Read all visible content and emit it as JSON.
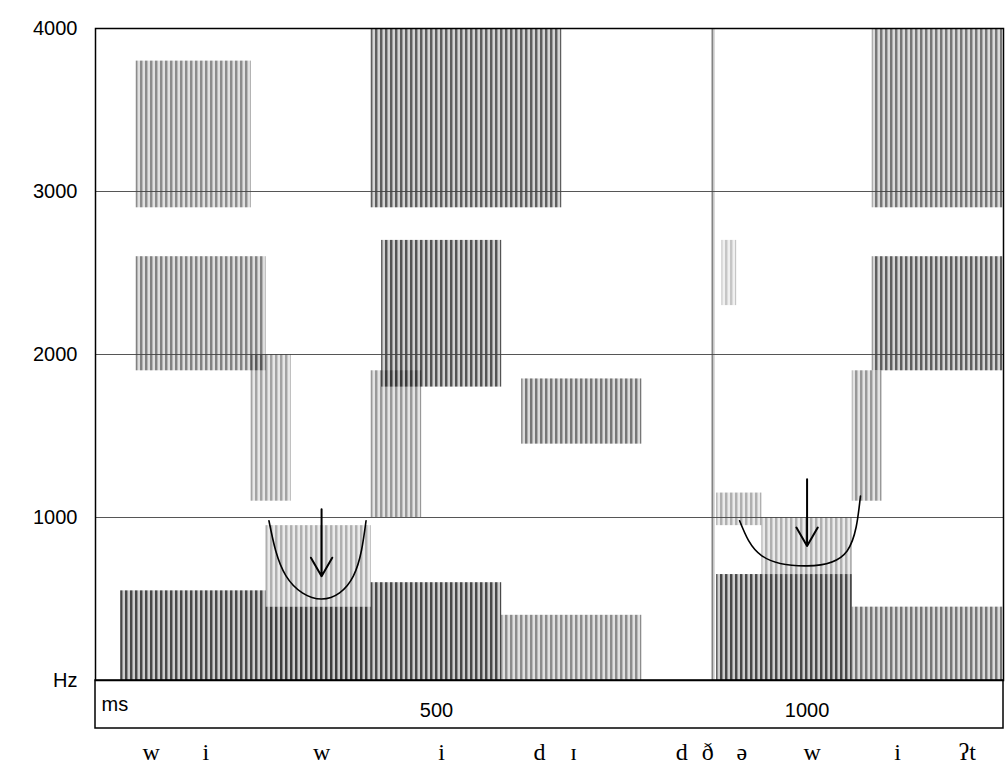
{
  "chart_data": {
    "type": "spectrogram",
    "xlabel": "ms",
    "xlim": [
      40,
      1265
    ],
    "ylim": [
      0,
      4000
    ],
    "xticks": [
      500,
      1000
    ],
    "yticks": [
      {
        "value": 0,
        "label": "Hz"
      },
      1000,
      2000,
      3000,
      4000
    ],
    "grid": true,
    "energy": [
      {
        "t": [
          74,
          270
        ],
        "f": [
          0,
          550
        ],
        "level": 0.8
      },
      {
        "t": [
          270,
          412
        ],
        "f": [
          0,
          450
        ],
        "level": 0.85
      },
      {
        "t": [
          270,
          412
        ],
        "f": [
          450,
          950
        ],
        "level": 0.35
      },
      {
        "t": [
          412,
          588
        ],
        "f": [
          0,
          600
        ],
        "level": 0.8
      },
      {
        "t": [
          588,
          777
        ],
        "f": [
          0,
          400
        ],
        "level": 0.5
      },
      {
        "t": [
          95,
          270
        ],
        "f": [
          1900,
          2600
        ],
        "level": 0.55
      },
      {
        "t": [
          95,
          250
        ],
        "f": [
          2900,
          3800
        ],
        "level": 0.5
      },
      {
        "t": [
          250,
          304
        ],
        "f": [
          1100,
          2000
        ],
        "level": 0.4
      },
      {
        "t": [
          412,
          480
        ],
        "f": [
          1000,
          1900
        ],
        "level": 0.45
      },
      {
        "t": [
          426,
          588
        ],
        "f": [
          1800,
          2700
        ],
        "level": 0.75
      },
      {
        "t": [
          412,
          669
        ],
        "f": [
          2900,
          4000
        ],
        "level": 0.7
      },
      {
        "t": [
          615,
          777
        ],
        "f": [
          1450,
          1850
        ],
        "level": 0.6
      },
      {
        "t": [
          872,
          876
        ],
        "f": [
          0,
          4000
        ],
        "level": 0.9
      },
      {
        "t": [
          878,
          939
        ],
        "f": [
          950,
          1150
        ],
        "level": 0.35
      },
      {
        "t": [
          885,
          905
        ],
        "f": [
          2300,
          2700
        ],
        "level": 0.25
      },
      {
        "t": [
          878,
          1061
        ],
        "f": [
          0,
          650
        ],
        "level": 0.8
      },
      {
        "t": [
          939,
          1061
        ],
        "f": [
          650,
          1000
        ],
        "level": 0.35
      },
      {
        "t": [
          1061,
          1101
        ],
        "f": [
          1100,
          1900
        ],
        "level": 0.45
      },
      {
        "t": [
          1061,
          1264
        ],
        "f": [
          0,
          450
        ],
        "level": 0.6
      },
      {
        "t": [
          1088,
          1264
        ],
        "f": [
          1900,
          2600
        ],
        "level": 0.7
      },
      {
        "t": [
          1088,
          1264
        ],
        "f": [
          2900,
          4000
        ],
        "level": 0.6
      }
    ],
    "formant_curves": [
      {
        "x": [
          274,
          297,
          345,
          388,
          405
        ],
        "y": [
          980,
          642,
          500,
          642,
          980
        ]
      },
      {
        "x": [
          909,
          939,
          1000,
          1054,
          1072
        ],
        "y": [
          980,
          765,
          703,
          795,
          1131
        ]
      }
    ],
    "arrows": [
      {
        "x": 345,
        "y1": 1050,
        "y2": 640
      },
      {
        "x": 1000,
        "y1": 1235,
        "y2": 825
      }
    ],
    "transcription": {
      "x": [
        115,
        189,
        345,
        507,
        639,
        685,
        831,
        866,
        912,
        1007,
        1122,
        1216
      ],
      "labels": [
        "w",
        "i",
        "w",
        "i",
        "d",
        "ɪ",
        "d",
        "ð",
        "ə",
        "w",
        "i",
        "ʔt"
      ]
    }
  }
}
